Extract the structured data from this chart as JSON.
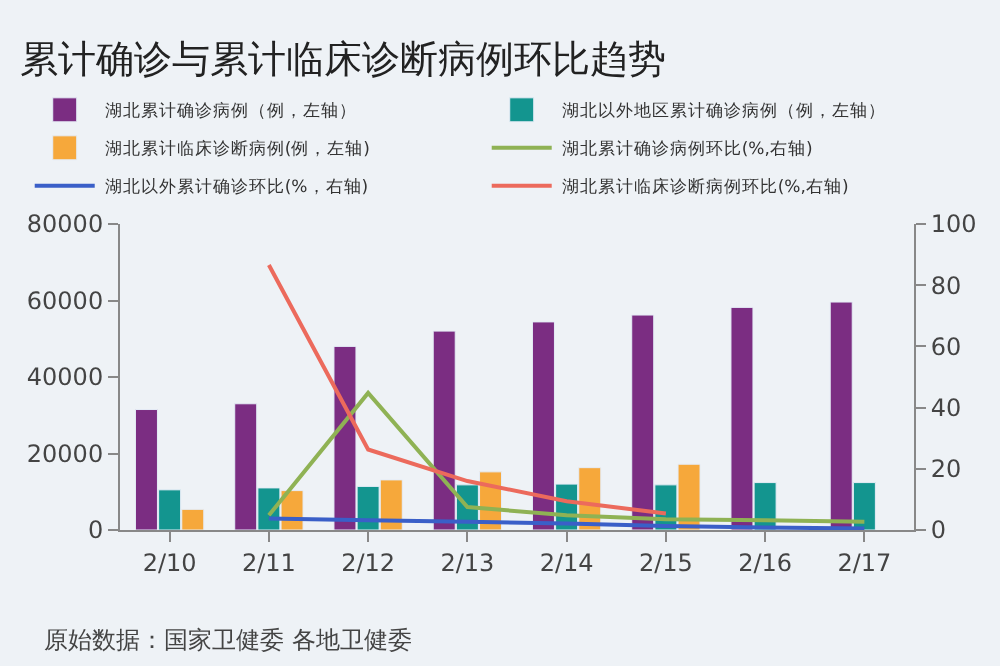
{
  "chart_data": {
    "type": "bar",
    "title": "累计确诊与累计临床诊断病例环比趋势",
    "categories": [
      "2/10",
      "2/11",
      "2/12",
      "2/13",
      "2/14",
      "2/15",
      "2/16",
      "2/17"
    ],
    "series": [
      {
        "name": "湖北累计确诊病例（例，左轴）",
        "color": "#7b2d82",
        "values": [
          31500,
          33000,
          48000,
          52000,
          54400,
          56200,
          58200,
          59600
        ]
      },
      {
        "name": "湖北以外地区累计确诊病例（例，左轴）",
        "color": "#13958f",
        "values": [
          10500,
          11000,
          11400,
          11800,
          12000,
          11800,
          12400,
          12400
        ]
      },
      {
        "name": "湖北累计临床诊断病例(例，左轴)",
        "color": "#f6a83b",
        "values": [
          5400,
          10300,
          13100,
          15200,
          16300,
          17200,
          null,
          null
        ]
      },
      {
        "name": "湖北累计确诊病例环比(%,右轴)",
        "color": "#8fb254",
        "type": "line",
        "axis": "y2",
        "values": [
          null,
          4.8,
          44.8,
          7.5,
          4.8,
          3.5,
          3.2,
          2.7
        ]
      },
      {
        "name": "湖北以外累计确诊环比(%，右轴)",
        "color": "#3a5fc8",
        "type": "line",
        "axis": "y2",
        "values": [
          null,
          3.8,
          3.2,
          2.7,
          2.1,
          1.3,
          0.8,
          0.5
        ]
      },
      {
        "name": "湖北累计临床诊断病例环比(%,右轴)",
        "color": "#ec6a5c",
        "type": "line",
        "axis": "y2",
        "values": [
          null,
          86.6,
          26.3,
          16,
          9.4,
          5.4,
          null,
          null
        ]
      }
    ],
    "ylim": [
      0,
      80000
    ],
    "yticks": [
      0,
      20000,
      40000,
      60000,
      80000
    ],
    "y2lim": [
      0,
      100
    ],
    "y2ticks": [
      0,
      20,
      40,
      60,
      80,
      100
    ],
    "grid": false,
    "legend": "top",
    "marker": "none",
    "line_style": "solid",
    "annotations": [
      "原始数据：国家卫健委 各地卫健委"
    ]
  }
}
